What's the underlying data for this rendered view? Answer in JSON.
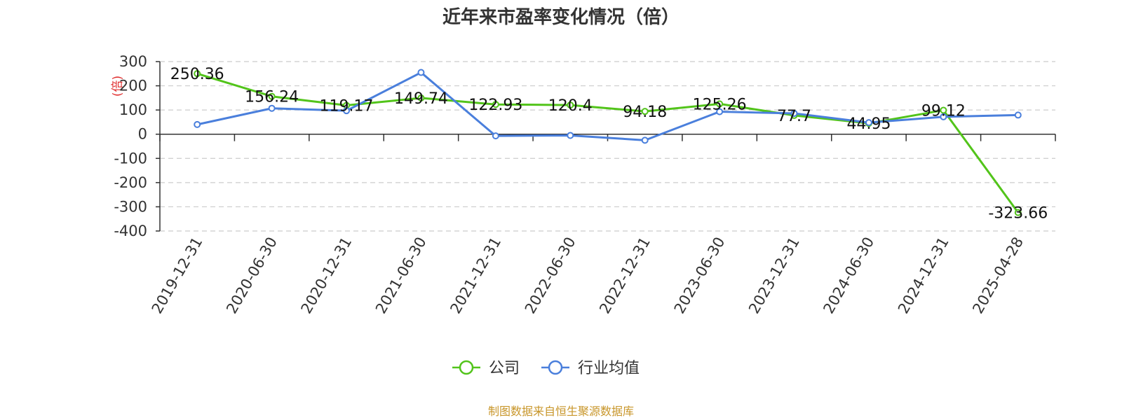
{
  "chart_data": {
    "type": "line",
    "title": "近年来市盈率变化情况（倍）",
    "ylabel": "(倍)",
    "xlabel": "",
    "categories": [
      "2019-12-31",
      "2020-06-30",
      "2020-12-31",
      "2021-06-30",
      "2021-12-31",
      "2022-06-30",
      "2022-12-31",
      "2023-06-30",
      "2023-12-31",
      "2024-06-30",
      "2024-12-31",
      "2025-04-28"
    ],
    "series": [
      {
        "name": "公司",
        "color": "#52c41a",
        "values": [
          250.36,
          156.24,
          119.17,
          149.74,
          122.93,
          120.4,
          94.18,
          125.26,
          77.7,
          44.95,
          99.12,
          -323.66
        ],
        "labels": [
          "250.36",
          "156.24",
          "119.17",
          "149.74",
          "122.93",
          "120.4",
          "94.18",
          "125.26",
          "77.7",
          "44.95",
          "99.12",
          "-323.66"
        ]
      },
      {
        "name": "行业均值",
        "color": "#4a7fdc",
        "values": [
          40,
          107,
          97,
          255,
          -7,
          -5,
          -25,
          93,
          86,
          48,
          72,
          79
        ]
      }
    ],
    "ylim": [
      -400,
      300
    ],
    "yticks": [
      300,
      200,
      100,
      0,
      -100,
      -200,
      -300,
      -400
    ],
    "grid": true,
    "legend_position": "bottom"
  },
  "footer": {
    "source": "制图数据来自恒生聚源数据库"
  }
}
